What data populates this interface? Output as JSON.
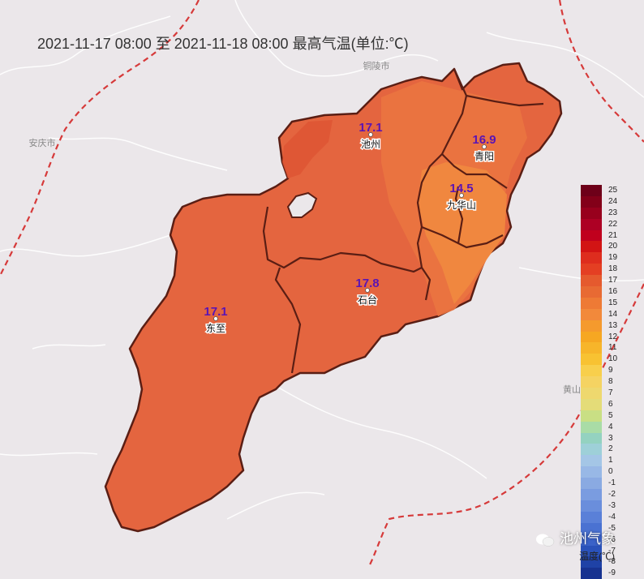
{
  "title": "2021-11-17 08:00 至 2021-11-18 08:00 最高气温(单位:℃)",
  "stations": [
    {
      "name": "池州",
      "value": "17.1"
    },
    {
      "name": "青阳",
      "value": "16.9"
    },
    {
      "name": "九华山",
      "value": "14.5"
    },
    {
      "name": "石台",
      "value": "17.8"
    },
    {
      "name": "东至",
      "value": "17.1"
    }
  ],
  "neighbor_places": [
    "铜陵市",
    "安庆市",
    "黄山"
  ],
  "legend": {
    "unit": "温度(℃)",
    "levels": [
      {
        "label": "25",
        "color": "#6e0019"
      },
      {
        "label": "24",
        "color": "#830019"
      },
      {
        "label": "23",
        "color": "#98001d"
      },
      {
        "label": "22",
        "color": "#ad0024"
      },
      {
        "label": "21",
        "color": "#c0001d"
      },
      {
        "label": "20",
        "color": "#d21414"
      },
      {
        "label": "19",
        "color": "#de2d1e"
      },
      {
        "label": "18",
        "color": "#e43f23"
      },
      {
        "label": "17",
        "color": "#e55a2e"
      },
      {
        "label": "16",
        "color": "#e86a33"
      },
      {
        "label": "15",
        "color": "#ee7a35"
      },
      {
        "label": "14",
        "color": "#f2893b"
      },
      {
        "label": "13",
        "color": "#f59a2d"
      },
      {
        "label": "12",
        "color": "#f6a722"
      },
      {
        "label": "11",
        "color": "#f7b52a"
      },
      {
        "label": "10",
        "color": "#f8c232"
      },
      {
        "label": "9",
        "color": "#f8cf4c"
      },
      {
        "label": "8",
        "color": "#f5d362"
      },
      {
        "label": "7",
        "color": "#eed86e"
      },
      {
        "label": "6",
        "color": "#e4dc78"
      },
      {
        "label": "5",
        "color": "#c9df84"
      },
      {
        "label": "4",
        "color": "#a9dca6"
      },
      {
        "label": "3",
        "color": "#94d2c0"
      },
      {
        "label": "2",
        "color": "#9ed0d8"
      },
      {
        "label": "1",
        "color": "#a4c6e6"
      },
      {
        "label": "0",
        "color": "#98b8e6"
      },
      {
        "label": "-1",
        "color": "#8aaae2"
      },
      {
        "label": "-2",
        "color": "#7a9ce0"
      },
      {
        "label": "-3",
        "color": "#6a8edc"
      },
      {
        "label": "-4",
        "color": "#5a80d8"
      },
      {
        "label": "-5",
        "color": "#4a72d2"
      },
      {
        "label": "-6",
        "color": "#3a62c8"
      },
      {
        "label": "-7",
        "color": "#2a52ba"
      },
      {
        "label": "-8",
        "color": "#1f42a6"
      },
      {
        "label": "-9",
        "color": "#173290"
      }
    ]
  },
  "watermark": "池州气象",
  "colors": {
    "background": "#ebe7ea",
    "province_border": "#d63a3a",
    "county_border": "#5a1e14",
    "base_fill": "#e4653f",
    "warm_fill": "#de5534",
    "cool_fill": "#f0883f",
    "value_text": "#5a14b4"
  }
}
